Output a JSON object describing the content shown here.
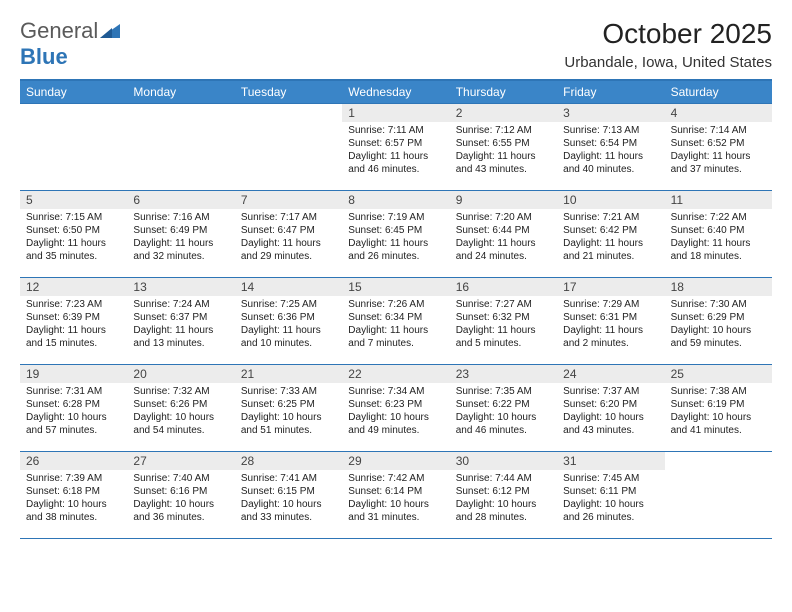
{
  "logo": {
    "word1": "General",
    "word2": "Blue"
  },
  "title": "October 2025",
  "subtitle": "Urbandale, Iowa, United States",
  "colors": {
    "header_bg": "#3a85c8",
    "rule": "#2e75b6",
    "daynum_bg": "#ececec",
    "text": "#222222",
    "logo_gray": "#5a5a5a",
    "logo_blue": "#2e75b6"
  },
  "day_names": [
    "Sunday",
    "Monday",
    "Tuesday",
    "Wednesday",
    "Thursday",
    "Friday",
    "Saturday"
  ],
  "weeks": [
    [
      {
        "n": "",
        "sr": "",
        "ss": "",
        "dl": ""
      },
      {
        "n": "",
        "sr": "",
        "ss": "",
        "dl": ""
      },
      {
        "n": "",
        "sr": "",
        "ss": "",
        "dl": ""
      },
      {
        "n": "1",
        "sr": "Sunrise: 7:11 AM",
        "ss": "Sunset: 6:57 PM",
        "dl": "Daylight: 11 hours and 46 minutes."
      },
      {
        "n": "2",
        "sr": "Sunrise: 7:12 AM",
        "ss": "Sunset: 6:55 PM",
        "dl": "Daylight: 11 hours and 43 minutes."
      },
      {
        "n": "3",
        "sr": "Sunrise: 7:13 AM",
        "ss": "Sunset: 6:54 PM",
        "dl": "Daylight: 11 hours and 40 minutes."
      },
      {
        "n": "4",
        "sr": "Sunrise: 7:14 AM",
        "ss": "Sunset: 6:52 PM",
        "dl": "Daylight: 11 hours and 37 minutes."
      }
    ],
    [
      {
        "n": "5",
        "sr": "Sunrise: 7:15 AM",
        "ss": "Sunset: 6:50 PM",
        "dl": "Daylight: 11 hours and 35 minutes."
      },
      {
        "n": "6",
        "sr": "Sunrise: 7:16 AM",
        "ss": "Sunset: 6:49 PM",
        "dl": "Daylight: 11 hours and 32 minutes."
      },
      {
        "n": "7",
        "sr": "Sunrise: 7:17 AM",
        "ss": "Sunset: 6:47 PM",
        "dl": "Daylight: 11 hours and 29 minutes."
      },
      {
        "n": "8",
        "sr": "Sunrise: 7:19 AM",
        "ss": "Sunset: 6:45 PM",
        "dl": "Daylight: 11 hours and 26 minutes."
      },
      {
        "n": "9",
        "sr": "Sunrise: 7:20 AM",
        "ss": "Sunset: 6:44 PM",
        "dl": "Daylight: 11 hours and 24 minutes."
      },
      {
        "n": "10",
        "sr": "Sunrise: 7:21 AM",
        "ss": "Sunset: 6:42 PM",
        "dl": "Daylight: 11 hours and 21 minutes."
      },
      {
        "n": "11",
        "sr": "Sunrise: 7:22 AM",
        "ss": "Sunset: 6:40 PM",
        "dl": "Daylight: 11 hours and 18 minutes."
      }
    ],
    [
      {
        "n": "12",
        "sr": "Sunrise: 7:23 AM",
        "ss": "Sunset: 6:39 PM",
        "dl": "Daylight: 11 hours and 15 minutes."
      },
      {
        "n": "13",
        "sr": "Sunrise: 7:24 AM",
        "ss": "Sunset: 6:37 PM",
        "dl": "Daylight: 11 hours and 13 minutes."
      },
      {
        "n": "14",
        "sr": "Sunrise: 7:25 AM",
        "ss": "Sunset: 6:36 PM",
        "dl": "Daylight: 11 hours and 10 minutes."
      },
      {
        "n": "15",
        "sr": "Sunrise: 7:26 AM",
        "ss": "Sunset: 6:34 PM",
        "dl": "Daylight: 11 hours and 7 minutes."
      },
      {
        "n": "16",
        "sr": "Sunrise: 7:27 AM",
        "ss": "Sunset: 6:32 PM",
        "dl": "Daylight: 11 hours and 5 minutes."
      },
      {
        "n": "17",
        "sr": "Sunrise: 7:29 AM",
        "ss": "Sunset: 6:31 PM",
        "dl": "Daylight: 11 hours and 2 minutes."
      },
      {
        "n": "18",
        "sr": "Sunrise: 7:30 AM",
        "ss": "Sunset: 6:29 PM",
        "dl": "Daylight: 10 hours and 59 minutes."
      }
    ],
    [
      {
        "n": "19",
        "sr": "Sunrise: 7:31 AM",
        "ss": "Sunset: 6:28 PM",
        "dl": "Daylight: 10 hours and 57 minutes."
      },
      {
        "n": "20",
        "sr": "Sunrise: 7:32 AM",
        "ss": "Sunset: 6:26 PM",
        "dl": "Daylight: 10 hours and 54 minutes."
      },
      {
        "n": "21",
        "sr": "Sunrise: 7:33 AM",
        "ss": "Sunset: 6:25 PM",
        "dl": "Daylight: 10 hours and 51 minutes."
      },
      {
        "n": "22",
        "sr": "Sunrise: 7:34 AM",
        "ss": "Sunset: 6:23 PM",
        "dl": "Daylight: 10 hours and 49 minutes."
      },
      {
        "n": "23",
        "sr": "Sunrise: 7:35 AM",
        "ss": "Sunset: 6:22 PM",
        "dl": "Daylight: 10 hours and 46 minutes."
      },
      {
        "n": "24",
        "sr": "Sunrise: 7:37 AM",
        "ss": "Sunset: 6:20 PM",
        "dl": "Daylight: 10 hours and 43 minutes."
      },
      {
        "n": "25",
        "sr": "Sunrise: 7:38 AM",
        "ss": "Sunset: 6:19 PM",
        "dl": "Daylight: 10 hours and 41 minutes."
      }
    ],
    [
      {
        "n": "26",
        "sr": "Sunrise: 7:39 AM",
        "ss": "Sunset: 6:18 PM",
        "dl": "Daylight: 10 hours and 38 minutes."
      },
      {
        "n": "27",
        "sr": "Sunrise: 7:40 AM",
        "ss": "Sunset: 6:16 PM",
        "dl": "Daylight: 10 hours and 36 minutes."
      },
      {
        "n": "28",
        "sr": "Sunrise: 7:41 AM",
        "ss": "Sunset: 6:15 PM",
        "dl": "Daylight: 10 hours and 33 minutes."
      },
      {
        "n": "29",
        "sr": "Sunrise: 7:42 AM",
        "ss": "Sunset: 6:14 PM",
        "dl": "Daylight: 10 hours and 31 minutes."
      },
      {
        "n": "30",
        "sr": "Sunrise: 7:44 AM",
        "ss": "Sunset: 6:12 PM",
        "dl": "Daylight: 10 hours and 28 minutes."
      },
      {
        "n": "31",
        "sr": "Sunrise: 7:45 AM",
        "ss": "Sunset: 6:11 PM",
        "dl": "Daylight: 10 hours and 26 minutes."
      },
      {
        "n": "",
        "sr": "",
        "ss": "",
        "dl": ""
      }
    ]
  ]
}
